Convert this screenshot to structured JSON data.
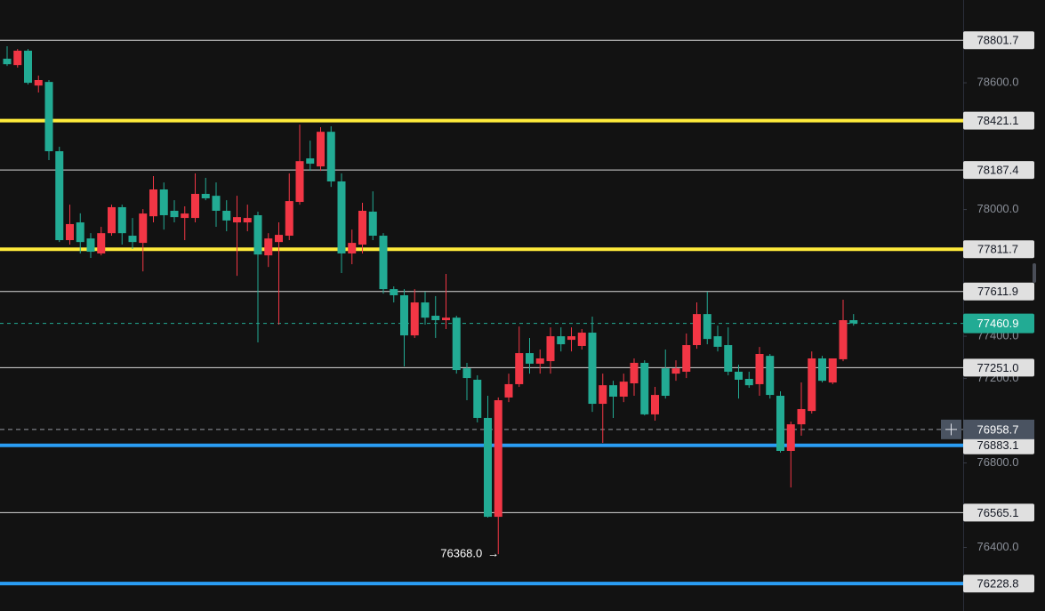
{
  "chart_data": {
    "type": "candlestick",
    "up_color": "#f23645",
    "down_color": "#22ab94",
    "open": [
      78714,
      78684,
      78752,
      78587,
      78604,
      78276,
      77855,
      77939,
      77863,
      77792,
      77888,
      78011,
      77876,
      77842,
      77968,
      78095,
      77994,
      77960,
      77960,
      78074,
      78065,
      77994,
      77939,
      77939,
      77973,
      77783,
      77846,
      77876,
      78036,
      78242,
      78204,
      78368,
      78133,
      77792,
      77834,
      77990,
      77876,
      77623,
      77594,
      77404,
      77560,
      77497,
      77476,
      77488,
      77248,
      77194,
      77013,
      76545,
      77110,
      77173,
      77320,
      77270,
      77282,
      77400,
      77383,
      77354,
      77417,
      77080,
      77168,
      77114,
      77177,
      77274,
      77030,
      77248,
      77223,
      77232,
      77358,
      77505,
      77400,
      77358,
      77232,
      77198,
      77173,
      77307,
      77118,
      76857,
      76983,
      77046,
      77295,
      77181,
      77291,
      77476
    ],
    "high": [
      78773,
      78760,
      78760,
      78634,
      78613,
      78297,
      78023,
      77982,
      77888,
      77918,
      78023,
      78023,
      77960,
      78002,
      78158,
      78128,
      78044,
      78015,
      78171,
      78150,
      78128,
      78044,
      78065,
      78023,
      77990,
      77888,
      77939,
      78171,
      78402,
      78326,
      78390,
      78394,
      78171,
      77905,
      78032,
      78086,
      77888,
      77636,
      77623,
      77623,
      77611,
      77590,
      77695,
      77497,
      77274,
      77215,
      77118,
      77110,
      77223,
      77446,
      77392,
      77337,
      77442,
      77442,
      77442,
      77434,
      77493,
      77223,
      77189,
      77223,
      77295,
      77286,
      77160,
      77337,
      77286,
      77413,
      77560,
      77611,
      77450,
      77442,
      77265,
      77232,
      77349,
      77316,
      77139,
      76996,
      77181,
      77328,
      77307,
      77295,
      77573,
      77505
    ],
    "low": [
      78680,
      78672,
      78592,
      78554,
      78234,
      77846,
      77834,
      77792,
      77771,
      77783,
      77876,
      77834,
      77813,
      77707,
      77939,
      77905,
      77939,
      77855,
      77939,
      78044,
      77918,
      77897,
      77686,
      77897,
      77371,
      77728,
      77455,
      77855,
      78023,
      78183,
      78183,
      78107,
      77699,
      77741,
      77792,
      77855,
      77602,
      77560,
      77257,
      77392,
      77455,
      77392,
      77434,
      77223,
      77097,
      76992,
      76541,
      76368,
      77088,
      77160,
      77223,
      77223,
      77223,
      77328,
      77328,
      77337,
      77042,
      76895,
      77013,
      77088,
      77118,
      77025,
      77000,
      77105,
      77189,
      77202,
      77341,
      77362,
      77328,
      77215,
      77105,
      77156,
      77118,
      77105,
      76849,
      76684,
      76929,
      77034,
      77181,
      77173,
      77282,
      77450
    ],
    "close": [
      78688,
      78752,
      78600,
      78613,
      78276,
      77855,
      77931,
      77846,
      77800,
      77888,
      78011,
      77888,
      77846,
      77981,
      78095,
      77973,
      77964,
      77981,
      78074,
      78053,
      77994,
      77948,
      77964,
      77960,
      77787,
      77863,
      77880,
      78040,
      78229,
      78217,
      78368,
      78133,
      77792,
      77842,
      77994,
      77876,
      77623,
      77594,
      77404,
      77560,
      77488,
      77476,
      77488,
      77240,
      77202,
      77013,
      76545,
      77097,
      77173,
      77320,
      77270,
      77295,
      77400,
      77362,
      77400,
      77417,
      77080,
      77168,
      77114,
      77185,
      77274,
      77030,
      77122,
      77118,
      77248,
      77358,
      77505,
      77387,
      77350,
      77232,
      77194,
      77168,
      77316,
      77122,
      76857,
      76983,
      77055,
      77295,
      77189,
      77295,
      77476,
      77460.9
    ],
    "ylim": [
      76099,
      78992
    ],
    "yticks": [
      {
        "value": 76400,
        "label": "76400.0"
      },
      {
        "value": 76800,
        "label": "76800.0"
      },
      {
        "value": 77200,
        "label": "77200.0"
      },
      {
        "value": 77400,
        "label": "77400.0"
      },
      {
        "value": 78000,
        "label": "78000.0"
      },
      {
        "value": 78600,
        "label": "78600.0"
      }
    ],
    "levels": [
      {
        "value": 78801.7,
        "color": "#d9d9d9",
        "width": 1
      },
      {
        "value": 78421.1,
        "color": "#ffeb3b",
        "width": 4
      },
      {
        "value": 78187.4,
        "color": "#d9d9d9",
        "width": 1
      },
      {
        "value": 77811.7,
        "color": "#ffeb3b",
        "width": 4
      },
      {
        "value": 77611.9,
        "color": "#d9d9d9",
        "width": 1
      },
      {
        "value": 77251,
        "label": "77251.0",
        "color": "#d9d9d9",
        "width": 1
      },
      {
        "value": 76883.1,
        "color": "#2a9df4",
        "width": 4
      },
      {
        "value": 76565.1,
        "color": "#d9d9d9",
        "width": 1
      },
      {
        "value": 76228.8,
        "color": "#2a9df4",
        "width": 4
      }
    ],
    "crosshair": {
      "value": 76958.7
    },
    "low_annotation": {
      "label": "76368.0",
      "arrow": "→"
    }
  }
}
